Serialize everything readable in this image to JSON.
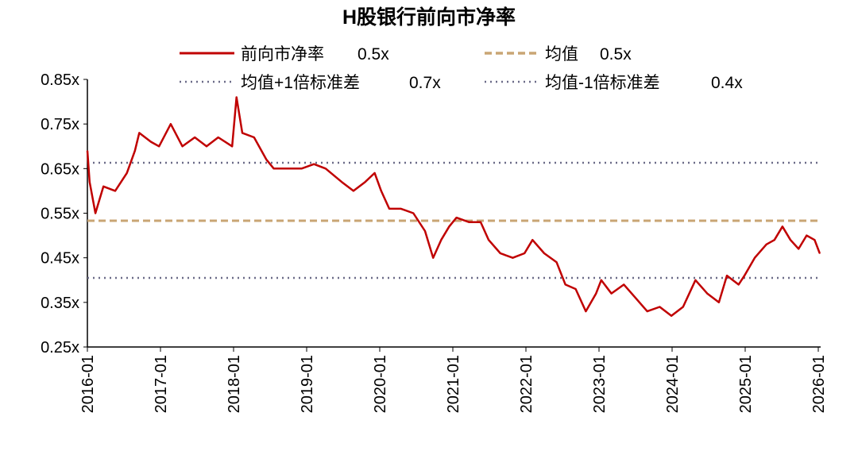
{
  "chart_data": {
    "type": "line",
    "title": "H股银行前向市净率",
    "xlabel": "",
    "ylabel": "",
    "ylim": [
      0.25,
      0.85
    ],
    "xlim": [
      2016.0,
      2026.03
    ],
    "y_ticks": [
      "0.85x",
      "0.75x",
      "0.65x",
      "0.55x",
      "0.45x",
      "0.35x",
      "0.25x"
    ],
    "y_tick_values": [
      0.85,
      0.75,
      0.65,
      0.55,
      0.45,
      0.35,
      0.25
    ],
    "x_ticks": [
      "2016-01",
      "2017-01",
      "2018-01",
      "2019-01",
      "2020-01",
      "2021-01",
      "2022-01",
      "2023-01",
      "2024-01",
      "2025-01",
      "2026-01"
    ],
    "x_tick_values": [
      2016,
      2017,
      2018,
      2019,
      2020,
      2021,
      2022,
      2023,
      2024,
      2025,
      2026
    ],
    "grid": false,
    "legend_position": "top",
    "legend": [
      {
        "label": "前向市净率",
        "value": "0.5x",
        "style": "solid",
        "color": "#C00000"
      },
      {
        "label": "均值",
        "value": "0.5x",
        "style": "dashed",
        "color": "#C9A574"
      },
      {
        "label": "均值+1倍标准差",
        "value": "0.7x",
        "style": "dotted",
        "color": "#6B6B88"
      },
      {
        "label": "均值-1倍标准差",
        "value": "0.4x",
        "style": "dotted",
        "color": "#6B6B88"
      }
    ],
    "series": [
      {
        "name": "前向市净率",
        "color": "#C00000",
        "x": [
          2016.0,
          2016.03,
          2016.11,
          2016.22,
          2016.38,
          2016.54,
          2016.65,
          2016.71,
          2016.87,
          2016.98,
          2017.14,
          2017.3,
          2017.47,
          2017.63,
          2017.79,
          2017.98,
          2018.04,
          2018.12,
          2018.28,
          2018.45,
          2018.55,
          2018.72,
          2018.93,
          2019.1,
          2019.26,
          2019.48,
          2019.64,
          2019.8,
          2019.93,
          2020.02,
          2020.13,
          2020.29,
          2020.46,
          2020.62,
          2020.73,
          2020.84,
          2020.95,
          2021.05,
          2021.22,
          2021.38,
          2021.49,
          2021.65,
          2021.82,
          2021.98,
          2022.09,
          2022.25,
          2022.42,
          2022.54,
          2022.68,
          2022.82,
          2022.96,
          2023.03,
          2023.17,
          2023.34,
          2023.5,
          2023.66,
          2023.83,
          2023.99,
          2024.15,
          2024.32,
          2024.48,
          2024.64,
          2024.75,
          2024.91,
          2024.99,
          2025.13,
          2025.29,
          2025.4,
          2025.51,
          2025.62,
          2025.73,
          2025.84,
          2025.95,
          2026.02
        ],
        "y": [
          0.69,
          0.62,
          0.55,
          0.61,
          0.6,
          0.64,
          0.69,
          0.73,
          0.71,
          0.7,
          0.75,
          0.7,
          0.72,
          0.7,
          0.72,
          0.7,
          0.81,
          0.73,
          0.72,
          0.67,
          0.65,
          0.65,
          0.65,
          0.66,
          0.65,
          0.62,
          0.6,
          0.62,
          0.64,
          0.6,
          0.56,
          0.56,
          0.55,
          0.51,
          0.45,
          0.49,
          0.52,
          0.54,
          0.53,
          0.53,
          0.49,
          0.46,
          0.45,
          0.46,
          0.49,
          0.46,
          0.44,
          0.39,
          0.38,
          0.33,
          0.37,
          0.4,
          0.37,
          0.39,
          0.36,
          0.33,
          0.34,
          0.32,
          0.34,
          0.4,
          0.37,
          0.35,
          0.41,
          0.39,
          0.41,
          0.45,
          0.48,
          0.49,
          0.52,
          0.49,
          0.47,
          0.5,
          0.49,
          0.46
        ]
      },
      {
        "name": "均值",
        "color": "#C9A574",
        "constant": 0.533
      },
      {
        "name": "均值+1倍标准差",
        "color": "#6B6B88",
        "constant": 0.663
      },
      {
        "name": "均值-1倍标准差",
        "color": "#6B6B88",
        "constant": 0.405
      }
    ]
  }
}
